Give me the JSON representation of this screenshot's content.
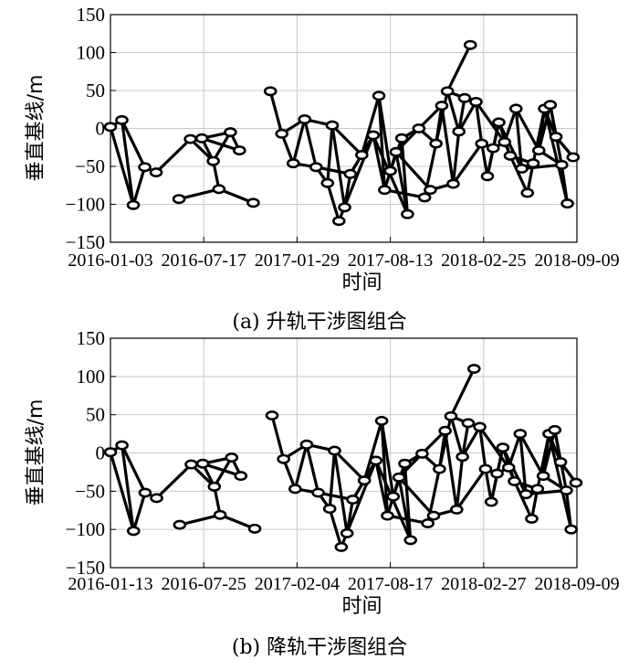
{
  "chart_data": [
    {
      "type": "scatter",
      "title": "(a) 升轨干涉图组合",
      "xlabel": "时间",
      "ylabel": "垂直基线/m",
      "xlim": [
        "2016-01-03",
        "2018-09-09"
      ],
      "ylim": [
        -150,
        150
      ],
      "xticks": [
        "2016-01-03",
        "2016-07-17",
        "2017-01-29",
        "2017-08-13",
        "2018-02-25",
        "2018-09-09"
      ],
      "yticks": [
        150,
        100,
        50,
        0,
        -50,
        -100,
        -150
      ],
      "grid": true,
      "nodes": [
        {
          "date": "2016-01-03",
          "value": 2
        },
        {
          "date": "2016-01-27",
          "value": 11
        },
        {
          "date": "2016-02-20",
          "value": -101
        },
        {
          "date": "2016-03-15",
          "value": -51
        },
        {
          "date": "2016-04-08",
          "value": -58
        },
        {
          "date": "2016-05-26",
          "value": -93
        },
        {
          "date": "2016-06-19",
          "value": -14
        },
        {
          "date": "2016-07-13",
          "value": -13
        },
        {
          "date": "2016-08-06",
          "value": -43
        },
        {
          "date": "2016-08-18",
          "value": -80
        },
        {
          "date": "2016-09-11",
          "value": -5
        },
        {
          "date": "2016-09-30",
          "value": -29
        },
        {
          "date": "2016-10-29",
          "value": -98
        },
        {
          "date": "2016-12-04",
          "value": 49
        },
        {
          "date": "2016-12-28",
          "value": -7
        },
        {
          "date": "2017-01-21",
          "value": -46
        },
        {
          "date": "2017-02-14",
          "value": 12
        },
        {
          "date": "2017-03-10",
          "value": -51
        },
        {
          "date": "2017-04-03",
          "value": -72
        },
        {
          "date": "2017-04-13",
          "value": 4
        },
        {
          "date": "2017-04-27",
          "value": -122
        },
        {
          "date": "2017-05-09",
          "value": -104
        },
        {
          "date": "2017-05-21",
          "value": -60
        },
        {
          "date": "2017-06-14",
          "value": -35
        },
        {
          "date": "2017-07-08",
          "value": -9
        },
        {
          "date": "2017-07-20",
          "value": 43
        },
        {
          "date": "2017-08-01",
          "value": -81
        },
        {
          "date": "2017-08-13",
          "value": -56
        },
        {
          "date": "2017-08-25",
          "value": -31
        },
        {
          "date": "2017-09-06",
          "value": -13
        },
        {
          "date": "2017-09-18",
          "value": -113
        },
        {
          "date": "2017-10-12",
          "value": 0
        },
        {
          "date": "2017-10-24",
          "value": -91
        },
        {
          "date": "2017-11-05",
          "value": -81
        },
        {
          "date": "2017-11-17",
          "value": -20
        },
        {
          "date": "2017-11-29",
          "value": 30
        },
        {
          "date": "2017-12-11",
          "value": 49
        },
        {
          "date": "2017-12-23",
          "value": -73
        },
        {
          "date": "2018-01-04",
          "value": -4
        },
        {
          "date": "2018-01-16",
          "value": 40
        },
        {
          "date": "2018-01-28",
          "value": 110
        },
        {
          "date": "2018-02-09",
          "value": 35
        },
        {
          "date": "2018-02-21",
          "value": -20
        },
        {
          "date": "2018-03-05",
          "value": -63
        },
        {
          "date": "2018-03-17",
          "value": -26
        },
        {
          "date": "2018-03-29",
          "value": 8
        },
        {
          "date": "2018-04-10",
          "value": -18
        },
        {
          "date": "2018-04-22",
          "value": -36
        },
        {
          "date": "2018-05-04",
          "value": 26
        },
        {
          "date": "2018-05-16",
          "value": -53
        },
        {
          "date": "2018-05-28",
          "value": -85
        },
        {
          "date": "2018-06-09",
          "value": -46
        },
        {
          "date": "2018-06-21",
          "value": -29
        },
        {
          "date": "2018-07-03",
          "value": 26
        },
        {
          "date": "2018-07-15",
          "value": 31
        },
        {
          "date": "2018-07-27",
          "value": -11
        },
        {
          "date": "2018-08-08",
          "value": -48
        },
        {
          "date": "2018-08-20",
          "value": -99
        },
        {
          "date": "2018-09-01",
          "value": -38
        }
      ],
      "edges": [
        [
          0,
          1
        ],
        [
          0,
          2
        ],
        [
          1,
          2
        ],
        [
          1,
          3
        ],
        [
          2,
          3
        ],
        [
          3,
          4
        ],
        [
          4,
          6
        ],
        [
          6,
          8
        ],
        [
          7,
          8
        ],
        [
          7,
          10
        ],
        [
          8,
          10
        ],
        [
          8,
          9
        ],
        [
          10,
          11
        ],
        [
          7,
          11
        ],
        [
          9,
          5
        ],
        [
          9,
          12
        ],
        [
          13,
          14
        ],
        [
          14,
          16
        ],
        [
          14,
          15
        ],
        [
          15,
          16
        ],
        [
          15,
          17
        ],
        [
          16,
          17
        ],
        [
          16,
          19
        ],
        [
          17,
          18
        ],
        [
          17,
          22
        ],
        [
          18,
          19
        ],
        [
          18,
          20
        ],
        [
          19,
          21
        ],
        [
          19,
          23
        ],
        [
          20,
          24
        ],
        [
          21,
          22
        ],
        [
          22,
          23
        ],
        [
          22,
          24
        ],
        [
          23,
          24
        ],
        [
          24,
          26
        ],
        [
          25,
          23
        ],
        [
          25,
          27
        ],
        [
          25,
          26
        ],
        [
          26,
          28
        ],
        [
          27,
          29
        ],
        [
          28,
          30
        ],
        [
          28,
          31
        ],
        [
          29,
          31
        ],
        [
          30,
          24
        ],
        [
          30,
          29
        ],
        [
          31,
          34
        ],
        [
          32,
          26
        ],
        [
          32,
          33
        ],
        [
          32,
          34
        ],
        [
          33,
          28
        ],
        [
          33,
          37
        ],
        [
          34,
          35
        ],
        [
          34,
          36
        ],
        [
          35,
          31
        ],
        [
          35,
          37
        ],
        [
          36,
          39
        ],
        [
          36,
          38
        ],
        [
          37,
          38
        ],
        [
          37,
          42
        ],
        [
          38,
          41
        ],
        [
          39,
          41
        ],
        [
          39,
          38
        ],
        [
          40,
          36
        ],
        [
          41,
          42
        ],
        [
          41,
          46
        ],
        [
          42,
          43
        ],
        [
          42,
          44
        ],
        [
          43,
          44
        ],
        [
          44,
          45
        ],
        [
          44,
          46
        ],
        [
          45,
          47
        ],
        [
          45,
          49
        ],
        [
          46,
          47
        ],
        [
          46,
          48
        ],
        [
          47,
          50
        ],
        [
          48,
          49
        ],
        [
          48,
          52
        ],
        [
          49,
          51
        ],
        [
          50,
          51
        ],
        [
          51,
          53
        ],
        [
          52,
          53
        ],
        [
          52,
          54
        ],
        [
          53,
          55
        ],
        [
          54,
          55
        ],
        [
          54,
          56
        ],
        [
          55,
          58
        ],
        [
          56,
          52
        ],
        [
          56,
          57
        ],
        [
          57,
          53
        ],
        [
          58,
          55
        ],
        [
          43,
          45
        ],
        [
          47,
          51
        ],
        [
          49,
          56
        ]
      ]
    },
    {
      "type": "scatter",
      "title": "(b) 降轨干涉图组合",
      "xlabel": "时间",
      "ylabel": "垂直基线/m",
      "xlim": [
        "2016-01-13",
        "2018-09-09"
      ],
      "ylim": [
        -150,
        150
      ],
      "xticks": [
        "2016-01-13",
        "2016-07-25",
        "2017-02-04",
        "2017-08-17",
        "2018-02-27",
        "2018-09-09"
      ],
      "yticks": [
        150,
        100,
        50,
        0,
        -50,
        -100,
        -150
      ],
      "grid": true,
      "nodes": [
        {
          "date": "2016-01-13",
          "value": 1
        },
        {
          "date": "2016-02-06",
          "value": 10
        },
        {
          "date": "2016-03-01",
          "value": -102
        },
        {
          "date": "2016-03-25",
          "value": -52
        },
        {
          "date": "2016-04-18",
          "value": -59
        },
        {
          "date": "2016-06-05",
          "value": -94
        },
        {
          "date": "2016-06-29",
          "value": -15
        },
        {
          "date": "2016-07-23",
          "value": -14
        },
        {
          "date": "2016-08-16",
          "value": -44
        },
        {
          "date": "2016-08-28",
          "value": -81
        },
        {
          "date": "2016-09-21",
          "value": -6
        },
        {
          "date": "2016-10-10",
          "value": -30
        },
        {
          "date": "2016-11-08",
          "value": -99
        },
        {
          "date": "2016-12-14",
          "value": 49
        },
        {
          "date": "2017-01-07",
          "value": -8
        },
        {
          "date": "2017-01-31",
          "value": -47
        },
        {
          "date": "2017-02-24",
          "value": 11
        },
        {
          "date": "2017-03-20",
          "value": -52
        },
        {
          "date": "2017-04-13",
          "value": -73
        },
        {
          "date": "2017-04-23",
          "value": 3
        },
        {
          "date": "2017-05-07",
          "value": -123
        },
        {
          "date": "2017-05-19",
          "value": -105
        },
        {
          "date": "2017-05-31",
          "value": -61
        },
        {
          "date": "2017-06-24",
          "value": -36
        },
        {
          "date": "2017-07-18",
          "value": -10
        },
        {
          "date": "2017-07-30",
          "value": 42
        },
        {
          "date": "2017-08-11",
          "value": -82
        },
        {
          "date": "2017-08-23",
          "value": -57
        },
        {
          "date": "2017-09-04",
          "value": -32
        },
        {
          "date": "2017-09-16",
          "value": -14
        },
        {
          "date": "2017-09-28",
          "value": -114
        },
        {
          "date": "2017-10-22",
          "value": -1
        },
        {
          "date": "2017-11-03",
          "value": -92
        },
        {
          "date": "2017-11-15",
          "value": -82
        },
        {
          "date": "2017-11-27",
          "value": -21
        },
        {
          "date": "2017-12-09",
          "value": 29
        },
        {
          "date": "2017-12-21",
          "value": 48
        },
        {
          "date": "2018-01-02",
          "value": -74
        },
        {
          "date": "2018-01-14",
          "value": -5
        },
        {
          "date": "2018-01-26",
          "value": 39
        },
        {
          "date": "2018-02-07",
          "value": 110
        },
        {
          "date": "2018-02-19",
          "value": 34
        },
        {
          "date": "2018-03-03",
          "value": -21
        },
        {
          "date": "2018-03-15",
          "value": -64
        },
        {
          "date": "2018-03-27",
          "value": -27
        },
        {
          "date": "2018-04-08",
          "value": 7
        },
        {
          "date": "2018-04-20",
          "value": -19
        },
        {
          "date": "2018-05-02",
          "value": -37
        },
        {
          "date": "2018-05-14",
          "value": 25
        },
        {
          "date": "2018-05-26",
          "value": -54
        },
        {
          "date": "2018-06-07",
          "value": -86
        },
        {
          "date": "2018-06-19",
          "value": -47
        },
        {
          "date": "2018-07-01",
          "value": -30
        },
        {
          "date": "2018-07-13",
          "value": 25
        },
        {
          "date": "2018-07-25",
          "value": 30
        },
        {
          "date": "2018-08-06",
          "value": -12
        },
        {
          "date": "2018-08-18",
          "value": -49
        },
        {
          "date": "2018-08-28",
          "value": -100
        },
        {
          "date": "2018-09-07",
          "value": -39
        }
      ],
      "edges": [
        [
          0,
          1
        ],
        [
          0,
          2
        ],
        [
          1,
          2
        ],
        [
          1,
          3
        ],
        [
          2,
          3
        ],
        [
          3,
          4
        ],
        [
          4,
          6
        ],
        [
          6,
          8
        ],
        [
          7,
          8
        ],
        [
          7,
          10
        ],
        [
          8,
          10
        ],
        [
          8,
          9
        ],
        [
          10,
          11
        ],
        [
          7,
          11
        ],
        [
          9,
          5
        ],
        [
          9,
          12
        ],
        [
          13,
          14
        ],
        [
          14,
          16
        ],
        [
          14,
          15
        ],
        [
          15,
          16
        ],
        [
          15,
          17
        ],
        [
          16,
          17
        ],
        [
          16,
          19
        ],
        [
          17,
          18
        ],
        [
          17,
          22
        ],
        [
          18,
          19
        ],
        [
          18,
          20
        ],
        [
          19,
          21
        ],
        [
          19,
          23
        ],
        [
          20,
          24
        ],
        [
          21,
          22
        ],
        [
          22,
          23
        ],
        [
          22,
          24
        ],
        [
          23,
          24
        ],
        [
          24,
          26
        ],
        [
          25,
          23
        ],
        [
          25,
          27
        ],
        [
          25,
          26
        ],
        [
          26,
          28
        ],
        [
          27,
          29
        ],
        [
          28,
          30
        ],
        [
          28,
          31
        ],
        [
          29,
          31
        ],
        [
          30,
          24
        ],
        [
          30,
          29
        ],
        [
          31,
          34
        ],
        [
          32,
          26
        ],
        [
          32,
          33
        ],
        [
          32,
          34
        ],
        [
          33,
          28
        ],
        [
          33,
          37
        ],
        [
          34,
          35
        ],
        [
          34,
          36
        ],
        [
          35,
          31
        ],
        [
          35,
          37
        ],
        [
          36,
          39
        ],
        [
          36,
          38
        ],
        [
          37,
          38
        ],
        [
          37,
          42
        ],
        [
          38,
          41
        ],
        [
          39,
          41
        ],
        [
          39,
          38
        ],
        [
          40,
          36
        ],
        [
          41,
          42
        ],
        [
          41,
          46
        ],
        [
          42,
          43
        ],
        [
          42,
          44
        ],
        [
          43,
          44
        ],
        [
          44,
          45
        ],
        [
          44,
          46
        ],
        [
          45,
          47
        ],
        [
          45,
          49
        ],
        [
          46,
          47
        ],
        [
          46,
          48
        ],
        [
          47,
          50
        ],
        [
          48,
          49
        ],
        [
          48,
          52
        ],
        [
          49,
          51
        ],
        [
          50,
          51
        ],
        [
          51,
          53
        ],
        [
          52,
          53
        ],
        [
          52,
          54
        ],
        [
          53,
          55
        ],
        [
          54,
          55
        ],
        [
          54,
          56
        ],
        [
          55,
          58
        ],
        [
          56,
          52
        ],
        [
          56,
          57
        ],
        [
          57,
          53
        ],
        [
          58,
          55
        ],
        [
          43,
          45
        ],
        [
          47,
          51
        ],
        [
          49,
          56
        ]
      ]
    }
  ]
}
